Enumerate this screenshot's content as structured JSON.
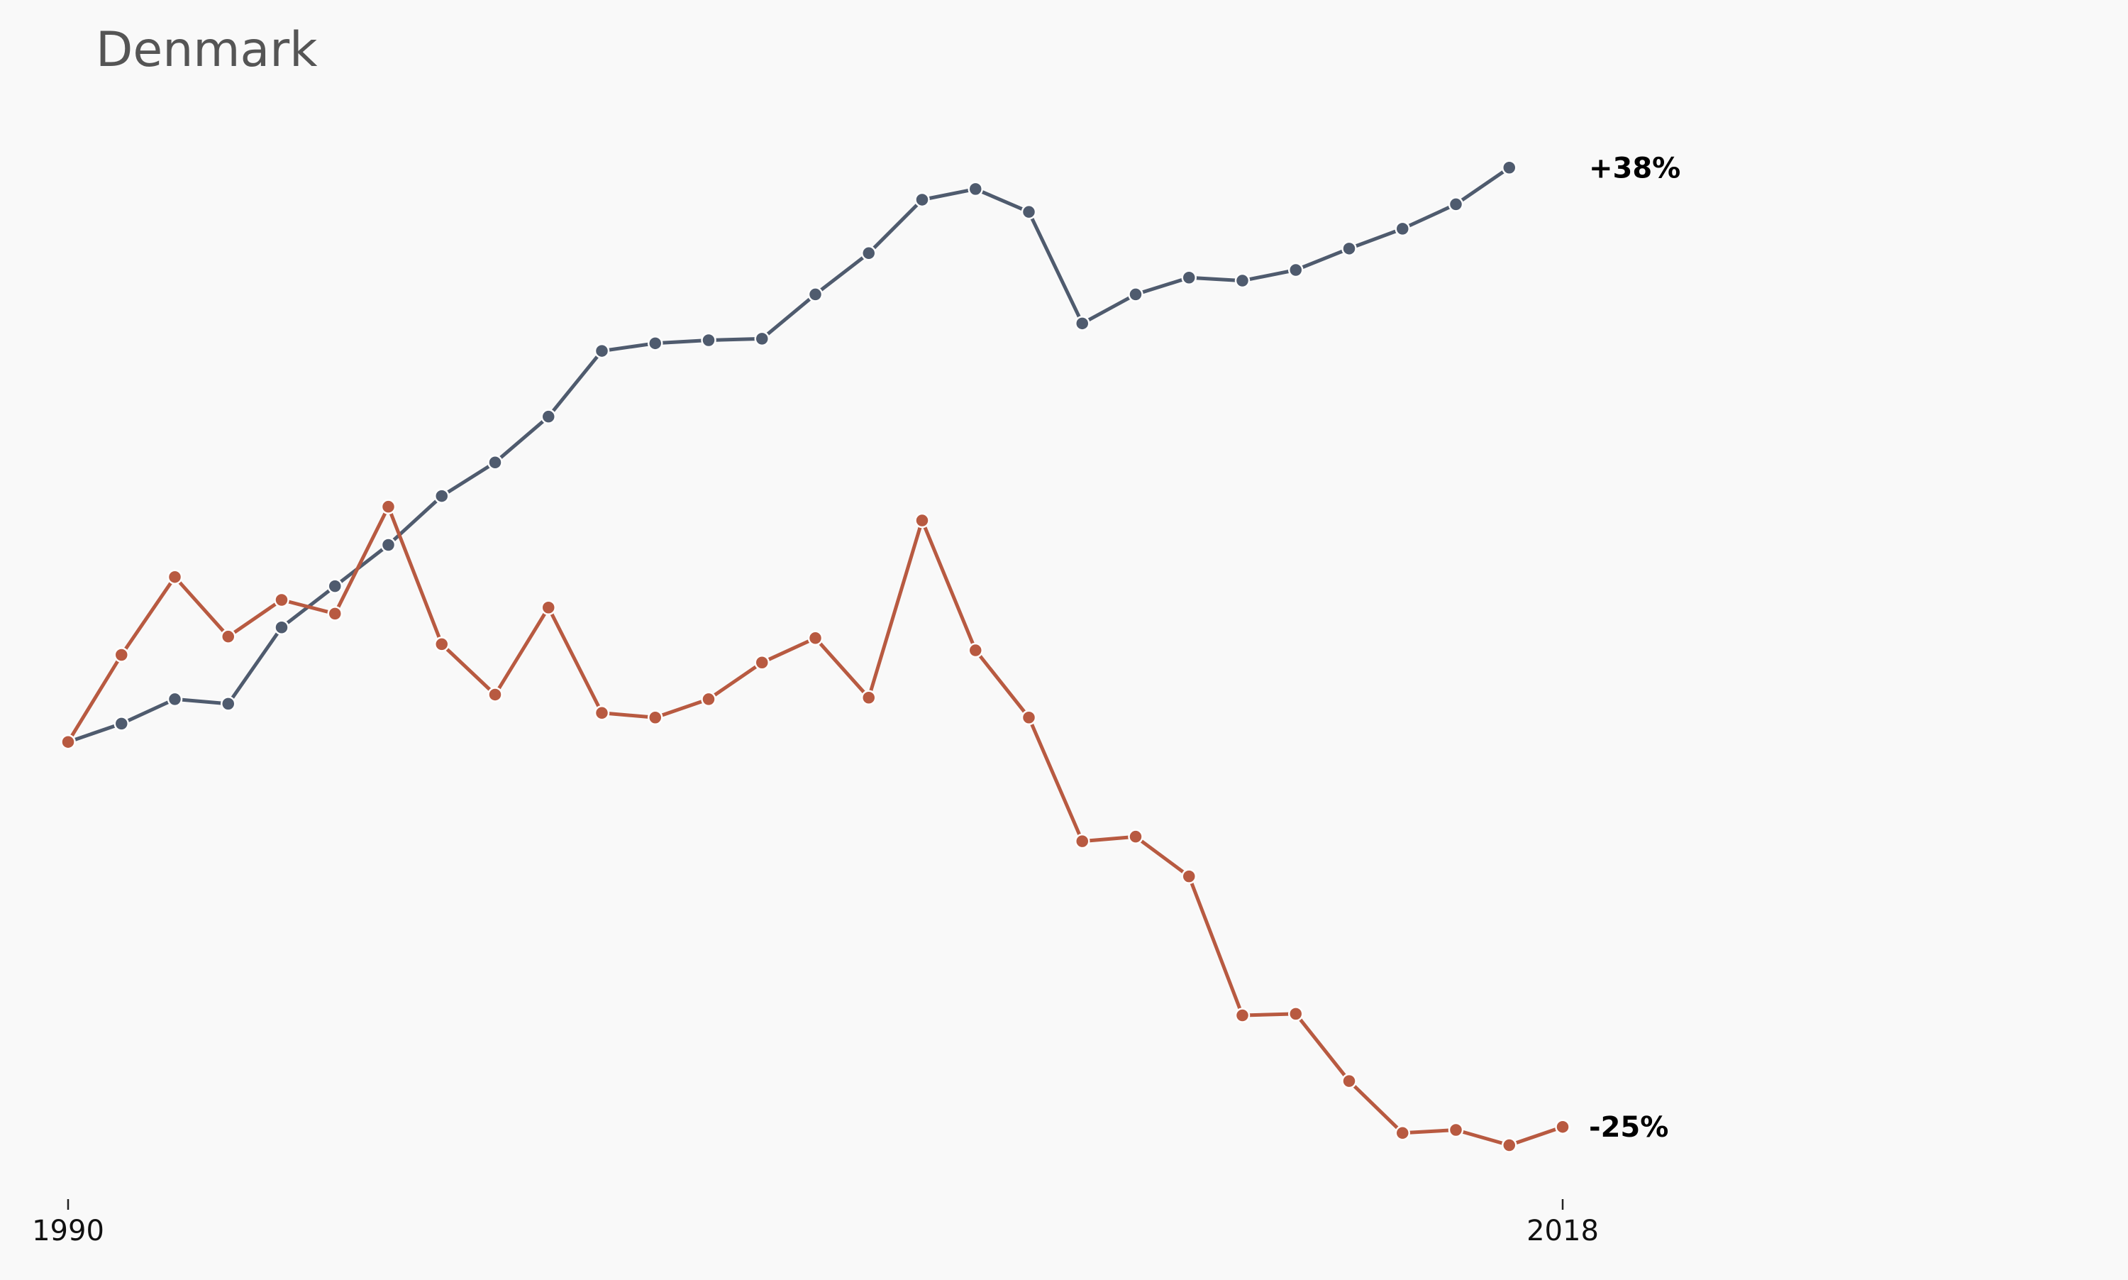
{
  "chart_data": {
    "type": "line",
    "title": "Denmark",
    "xlabel": "",
    "ylabel": "",
    "xlim": [
      1990,
      2018
    ],
    "ylim": [
      -29,
      43
    ],
    "grid": false,
    "legend": "none",
    "x_ticks": [
      {
        "value": 1990,
        "label": "1990"
      },
      {
        "value": 2018,
        "label": "2018"
      }
    ],
    "series": [
      {
        "color": "#4f5b6e",
        "x": [
          1990,
          1991,
          1992,
          1993,
          1994,
          1995,
          1996,
          1997,
          1998,
          1999,
          2000,
          2001,
          2002,
          2003,
          2004,
          2005,
          2006,
          2007,
          2008,
          2009,
          2010,
          2011,
          2012,
          2013,
          2014,
          2015,
          2016,
          2017
        ],
        "values": [
          0,
          1.2,
          2.8,
          2.5,
          7.5,
          10.2,
          12.9,
          16.1,
          18.3,
          21.3,
          25.6,
          26.1,
          26.3,
          26.4,
          29.3,
          32.0,
          35.5,
          36.2,
          34.7,
          27.4,
          29.3,
          30.4,
          30.2,
          30.9,
          32.3,
          33.6,
          35.2,
          37.6
        ],
        "end_label": "+38%"
      },
      {
        "color": "#b85a41",
        "x": [
          1990,
          1991,
          1992,
          1993,
          1994,
          1995,
          1996,
          1997,
          1998,
          1999,
          2000,
          2001,
          2002,
          2003,
          2004,
          2005,
          2006,
          2007,
          2008,
          2009,
          2010,
          2011,
          2012,
          2013,
          2014,
          2015,
          2016,
          2017,
          2018
        ],
        "values": [
          0,
          5.7,
          10.8,
          6.9,
          9.3,
          8.4,
          15.4,
          6.4,
          3.1,
          8.8,
          1.9,
          1.6,
          2.8,
          5.2,
          6.8,
          2.9,
          14.5,
          6.0,
          1.6,
          -6.5,
          -6.2,
          -8.8,
          -17.9,
          -17.8,
          -22.2,
          -25.6,
          -25.4,
          -26.4,
          -25.2
        ],
        "end_label": "-25%"
      }
    ]
  }
}
